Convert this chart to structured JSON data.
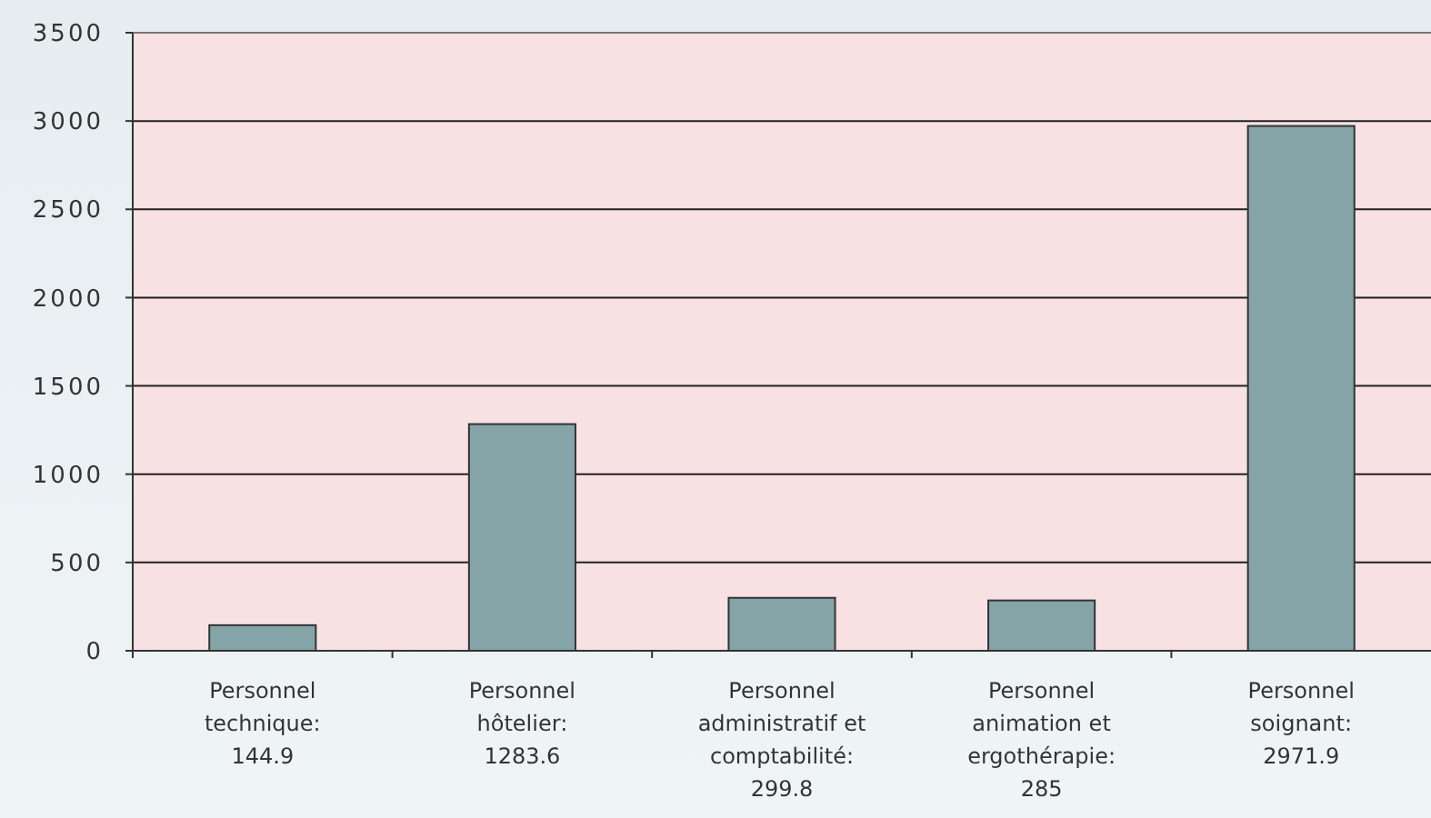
{
  "chart_data": {
    "type": "bar",
    "categories": [
      "Personnel technique: 144.9",
      "Personnel hôtelier: 1283.6",
      "Personnel administratif et comptabilité: 299.8",
      "Personnel animation et ergothérapie: 285",
      "Personnel soignant: 2971.9"
    ],
    "values": [
      144.9,
      1283.6,
      299.8,
      285,
      2971.9
    ],
    "color": "#84a4a8",
    "ylim": [
      0,
      3500
    ],
    "yticks": [
      0,
      500,
      1000,
      1500,
      2000,
      2500,
      3000,
      3500
    ],
    "grid": "y"
  }
}
